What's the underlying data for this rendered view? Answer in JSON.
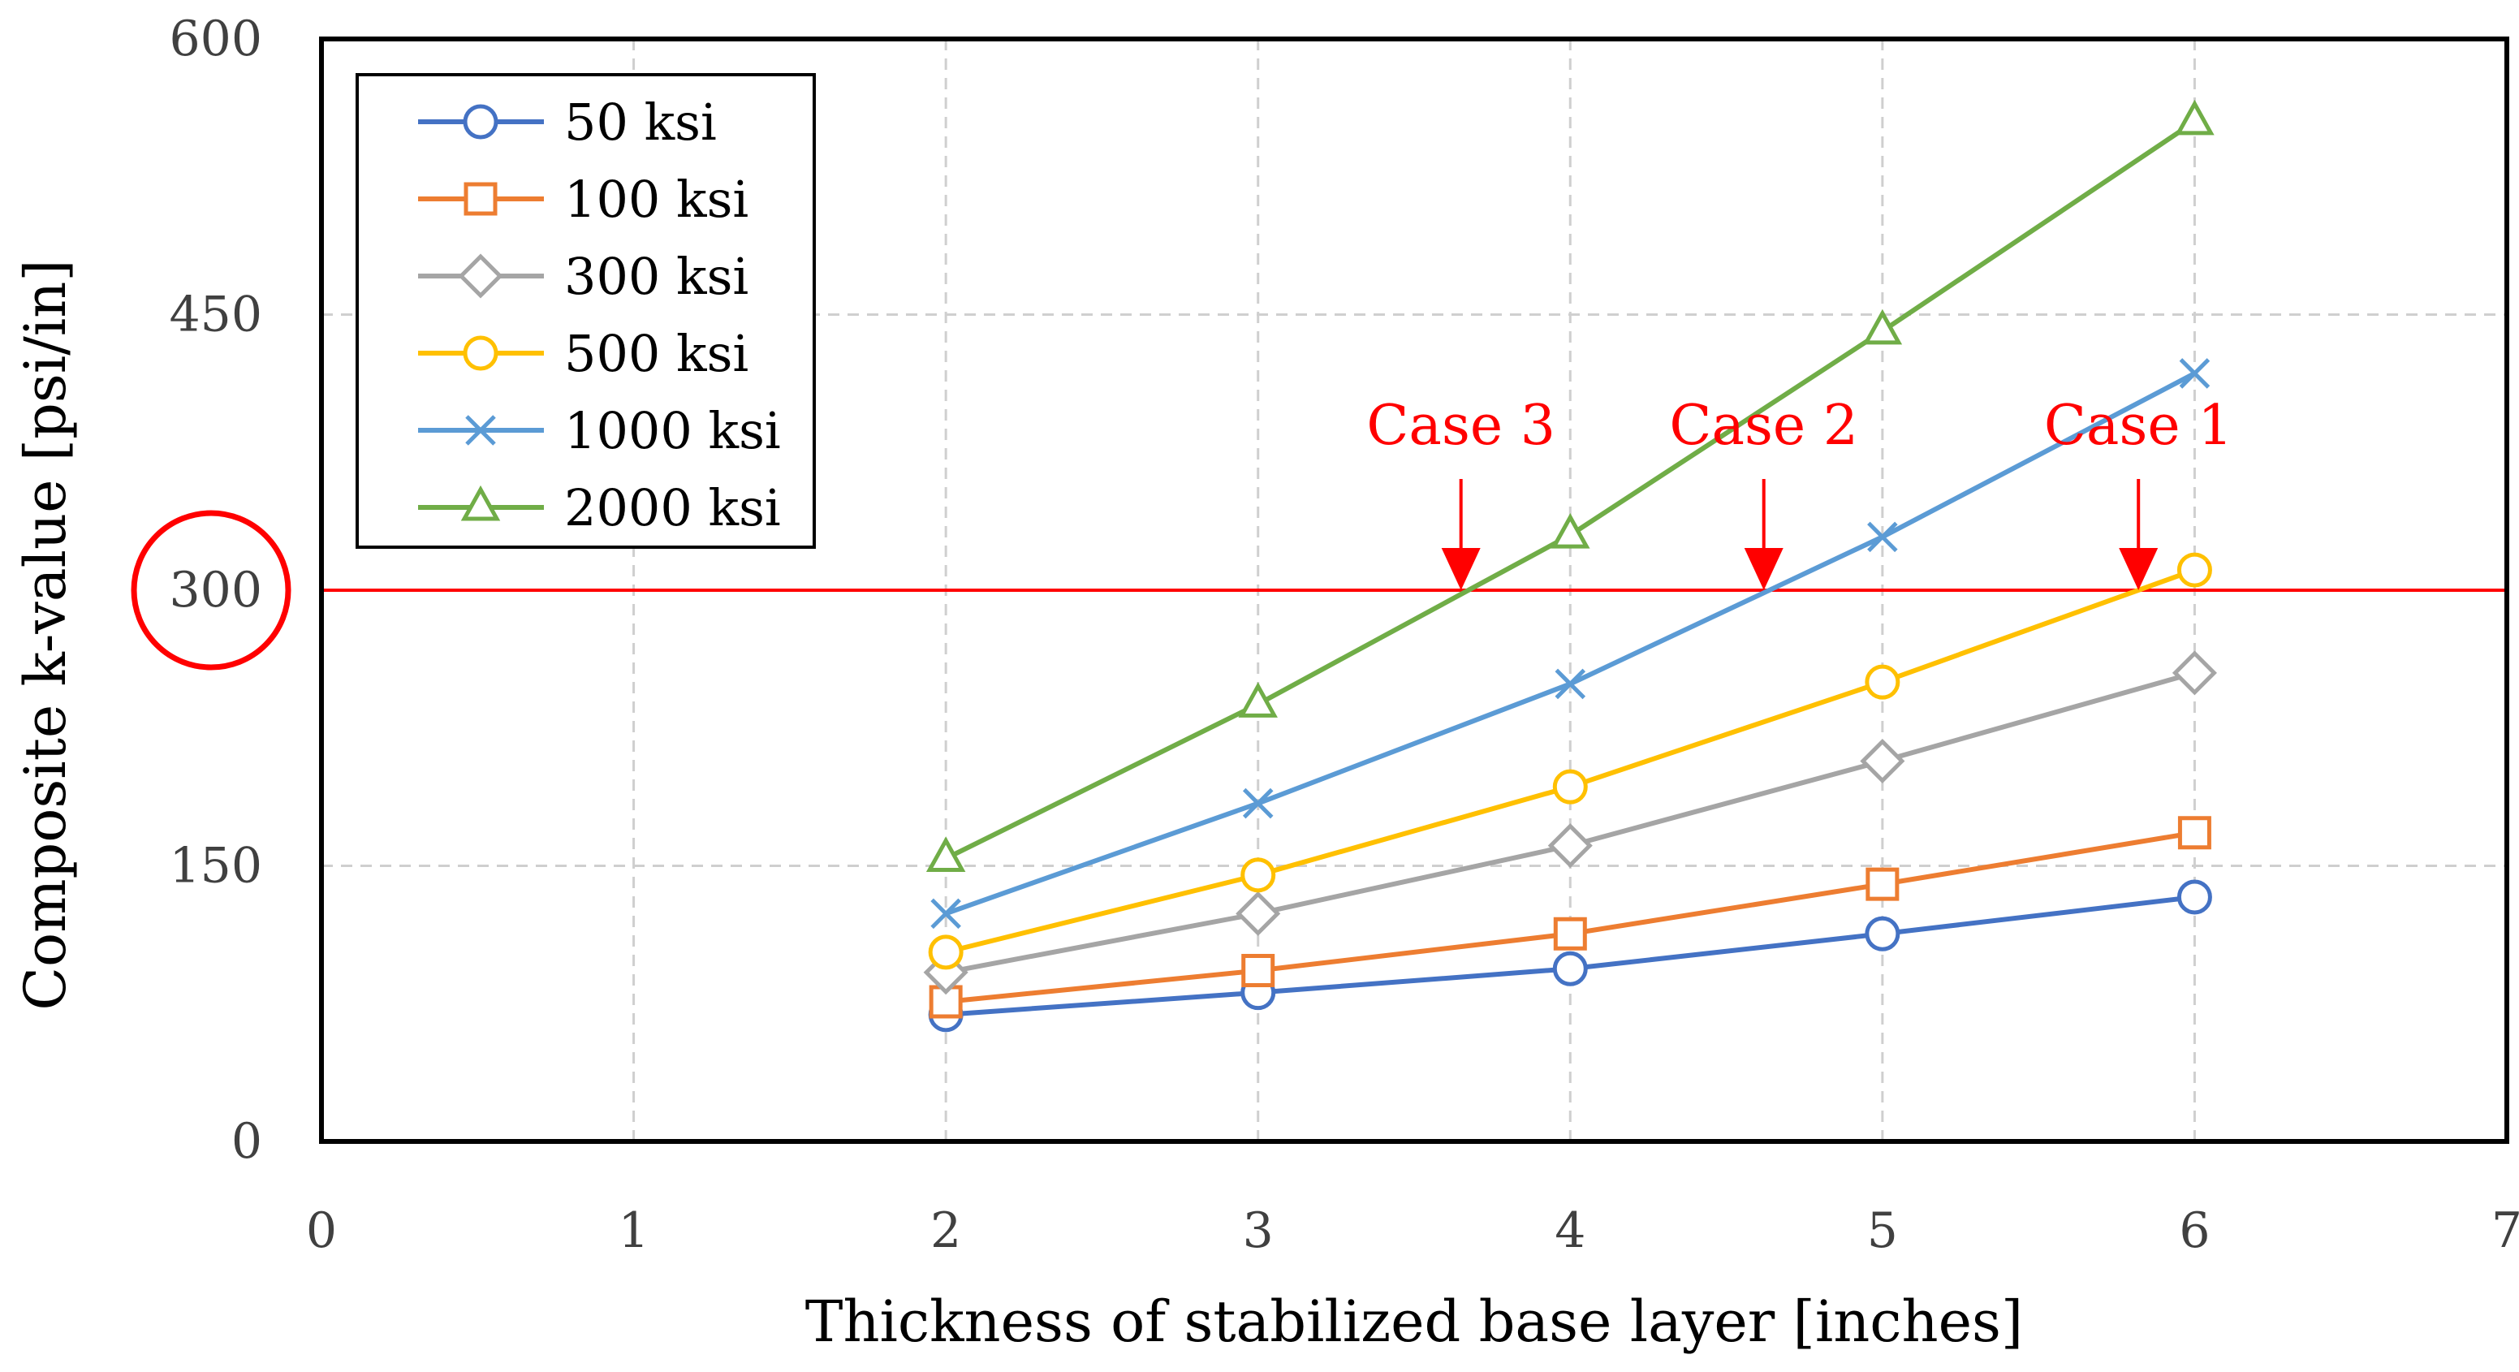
{
  "chart_data": {
    "type": "line",
    "title": "",
    "xlabel": "Thickness of stabilized base layer [inches]",
    "ylabel": "Composite k-value [psi/in]",
    "xlim": [
      0,
      7
    ],
    "ylim": [
      0,
      600
    ],
    "xticks": [
      "0",
      "1",
      "2",
      "3",
      "4",
      "5",
      "6",
      "7"
    ],
    "yticks": [
      "0",
      "150",
      "300",
      "450",
      "600"
    ],
    "grid": true,
    "legend_position": "top-left",
    "x": [
      2,
      3,
      4,
      5,
      6
    ],
    "series": [
      {
        "name": "50 ksi",
        "color": "#4472c4",
        "marker": "circle",
        "values": [
          69,
          81,
          94,
          113,
          133
        ]
      },
      {
        "name": "100 ksi",
        "color": "#ed7d31",
        "marker": "square",
        "values": [
          76,
          93,
          113,
          140,
          168
        ]
      },
      {
        "name": "300 ksi",
        "color": "#a5a5a5",
        "marker": "diamond",
        "values": [
          92,
          124,
          161,
          207,
          255
        ]
      },
      {
        "name": "500 ksi",
        "color": "#ffc000",
        "marker": "circle",
        "values": [
          103,
          145,
          193,
          250,
          311
        ]
      },
      {
        "name": "1000 ksi",
        "color": "#5b9bd5",
        "marker": "x",
        "values": [
          124,
          184,
          249,
          329,
          418
        ]
      },
      {
        "name": "2000 ksi",
        "color": "#70ad47",
        "marker": "triangle",
        "values": [
          154,
          238,
          330,
          441,
          555
        ]
      }
    ],
    "reference_line": {
      "y": 300,
      "label": "300",
      "color": "#ff0000"
    },
    "annotations": [
      {
        "text": "Case 3",
        "x": 3.65,
        "y": 300,
        "color": "#ff0000"
      },
      {
        "text": "Case 2",
        "x": 4.62,
        "y": 300,
        "color": "#ff0000"
      },
      {
        "text": "Case 1",
        "x": 5.82,
        "y": 300,
        "color": "#ff0000"
      }
    ]
  }
}
